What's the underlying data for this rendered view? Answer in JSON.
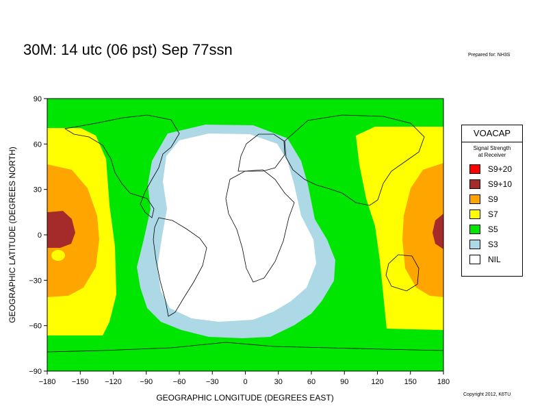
{
  "header": {
    "title": "30M:  14 utc (06 pst) Sep 77ssn",
    "prepared_for": "Prepared for: NH3S"
  },
  "footer": {
    "copyright": "Copyright 2012, K6TU"
  },
  "chart_data": {
    "type": "heatmap",
    "xlabel": "GEOGRAPHIC LONGITUDE (DEGREES EAST)",
    "ylabel": "GEOGRAPHIC LATITUDE (DEGREES NORTH)",
    "xlim": [
      -180,
      180
    ],
    "ylim": [
      -90,
      90
    ],
    "x_ticks": [
      -180,
      -150,
      -120,
      -90,
      -60,
      -30,
      0,
      30,
      60,
      90,
      120,
      150,
      180
    ],
    "y_ticks": [
      90,
      60,
      30,
      0,
      -30,
      -60,
      -90
    ],
    "x_tick_labels": [
      "−180",
      "−150",
      "−120",
      "−90",
      "−60",
      "−30",
      "0",
      "30",
      "60",
      "90",
      "120",
      "150",
      "180"
    ],
    "y_tick_labels": [
      "90",
      "60",
      "30",
      "0",
      "−30",
      "−60",
      "−90"
    ],
    "colors": {
      "S9+20": "#ff0000",
      "S9+10": "#a52a2a",
      "S9": "#ffa500",
      "S7": "#ffff00",
      "S5": "#00e600",
      "S3": "#add8e6",
      "NIL": "#ffffff"
    }
  },
  "legend": {
    "title": "VOACAP",
    "subtitle_line1": "Signal Strength",
    "subtitle_line2": "at Receiver",
    "items": [
      {
        "label": "S9+20",
        "color": "#ff0000"
      },
      {
        "label": "S9+10",
        "color": "#a52a2a"
      },
      {
        "label": "S9",
        "color": "#ffa500"
      },
      {
        "label": "S7",
        "color": "#ffff00"
      },
      {
        "label": "S5",
        "color": "#00e600"
      },
      {
        "label": "S3",
        "color": "#add8e6"
      },
      {
        "label": "NIL",
        "color": "#ffffff"
      }
    ]
  }
}
